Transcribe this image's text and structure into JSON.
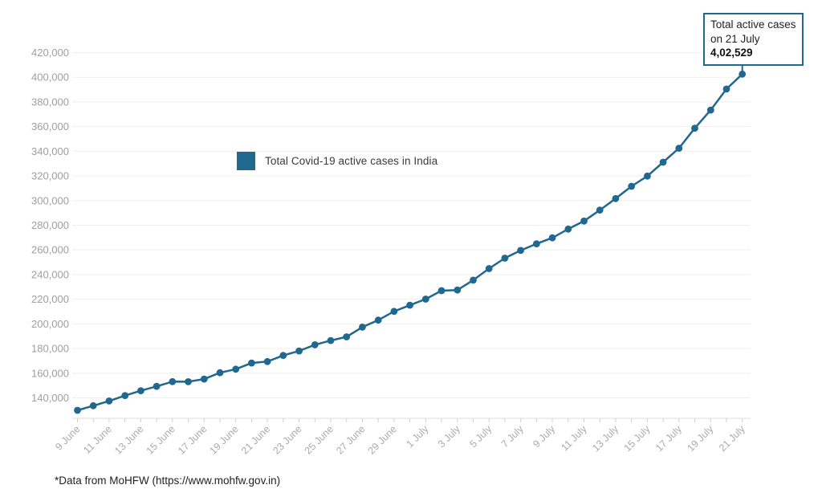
{
  "page": {
    "footnote": "*Data from MoHFW (https://www.mohfw.gov.in)"
  },
  "legend": {
    "label": "Total Covid-19 active cases in India"
  },
  "annotation": {
    "line1": "Total active cases",
    "line2": "on 21 July",
    "value": "4,02,529"
  },
  "colors": {
    "series": "#20688f",
    "grid": "#efefef",
    "axis_line": "#dcdcdc",
    "tick": "#cfcfcf",
    "y_label": "#9e9e9e",
    "x_label": "#ababab",
    "text": "#222222"
  },
  "chart_data": {
    "type": "line",
    "title": "",
    "x": [
      "9 June",
      "10 June",
      "11 June",
      "12 June",
      "13 June",
      "14 June",
      "15 June",
      "16 June",
      "17 June",
      "18 June",
      "19 June",
      "20 June",
      "21 June",
      "22 June",
      "23 June",
      "24 June",
      "25 June",
      "26 June",
      "27 June",
      "28 June",
      "29 June",
      "30 June",
      "1 July",
      "2 July",
      "3 July",
      "4 July",
      "5 July",
      "6 July",
      "7 July",
      "8 July",
      "9 July",
      "10 July",
      "11 July",
      "12 July",
      "13 July",
      "14 July",
      "15 July",
      "16 July",
      "17 July",
      "18 July",
      "19 July",
      "20 July",
      "21 July"
    ],
    "series": [
      {
        "name": "Total Covid-19 active cases in India",
        "values": [
          129917,
          133632,
          137448,
          141842,
          145779,
          149348,
          153178,
          153106,
          155227,
          160384,
          163248,
          168269,
          169451,
          174387,
          178014,
          183022,
          186514,
          189463,
          197387,
          203051,
          210120,
          215125,
          220114,
          226947,
          227439,
          235433,
          244814,
          253287,
          259557,
          264944,
          269789,
          276882,
          283407,
          292258,
          301609,
          311565,
          319840,
          331146,
          342473,
          358692,
          373379,
          390459,
          402529
        ]
      }
    ],
    "x_label_every": 2,
    "ylim": [
      123400,
      420000
    ],
    "y_ticks": [
      140000,
      160000,
      180000,
      200000,
      220000,
      240000,
      260000,
      280000,
      300000,
      320000,
      340000,
      360000,
      380000,
      400000,
      420000
    ],
    "grid": "horizontal",
    "legend_position": "inside-upper-left",
    "marker": "circle",
    "annotation_target_index": 42
  }
}
